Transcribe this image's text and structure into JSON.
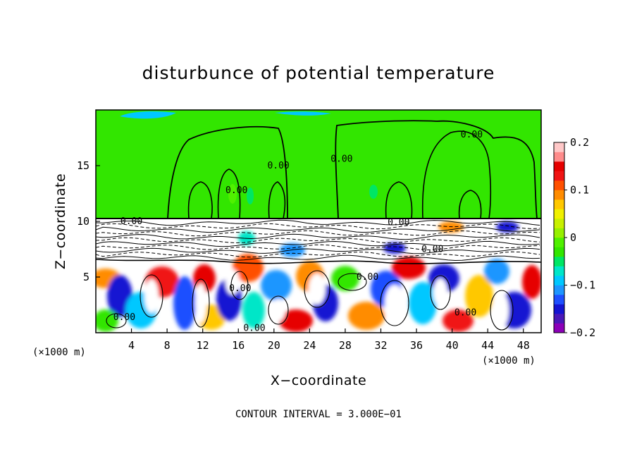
{
  "chart_data": {
    "type": "heatmap",
    "title": "disturbunce of potential temperature",
    "xlabel": "X−coordinate",
    "ylabel": "Z−coordinate",
    "x_unit": "(×1000 m)",
    "y_unit": "(×1000 m)",
    "xlim": [
      0,
      50
    ],
    "ylim": [
      0,
      20
    ],
    "x_ticks": [
      4,
      8,
      12,
      16,
      20,
      24,
      28,
      32,
      36,
      40,
      44,
      48
    ],
    "y_ticks": [
      5,
      10,
      15
    ],
    "colorbar": {
      "range": [
        -0.2,
        0.2
      ],
      "ticks": [
        "0.2",
        "0.1",
        "0",
        "−0.1",
        "−0.2"
      ],
      "tick_values": [
        0.2,
        0.1,
        0,
        -0.1,
        -0.2
      ],
      "colors": [
        "#8c00b8",
        "#4a18b8",
        "#1414d2",
        "#1e50ff",
        "#1e96ff",
        "#00c8ff",
        "#00e6c8",
        "#00e664",
        "#32e600",
        "#50f000",
        "#96f000",
        "#c8f000",
        "#f0f000",
        "#ffc800",
        "#ff8c00",
        "#ff5000",
        "#f01414",
        "#e60000",
        "#ff8c8c",
        "#ffc8c8"
      ]
    },
    "contour_labels": [
      {
        "text": "0.00",
        "x": 20.5,
        "y": 15.0
      },
      {
        "text": "0.00",
        "x": 15.8,
        "y": 12.8
      },
      {
        "text": "0.00",
        "x": 27.6,
        "y": 15.6
      },
      {
        "text": "0.00",
        "x": 42.2,
        "y": 17.8
      },
      {
        "text": "0.00",
        "x": 34.0,
        "y": 9.9
      },
      {
        "text": "0.00",
        "x": 37.8,
        "y": 7.5
      },
      {
        "text": "0.00",
        "x": 30.5,
        "y": 5.0
      },
      {
        "text": "0.00",
        "x": 16.2,
        "y": 4.0
      },
      {
        "text": "0.00",
        "x": 17.8,
        "y": 0.4
      },
      {
        "text": "0.00",
        "x": 3.2,
        "y": 1.4
      },
      {
        "text": "0.00",
        "x": 41.5,
        "y": 1.8
      },
      {
        "text": "0.00",
        "x": 4.0,
        "y": 10.0
      }
    ],
    "contour_interval": "CONTOUR INTERVAL = 3.000E−01",
    "grid": false
  }
}
